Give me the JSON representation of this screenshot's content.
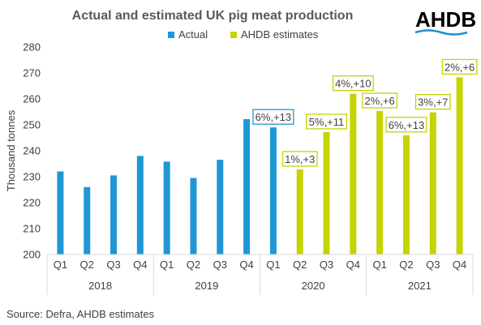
{
  "brand": {
    "logo_text": "AHDB",
    "logo_color": "#1e8fd0"
  },
  "source": "Source: Defra, AHDB estimates",
  "chart_data": {
    "type": "bar",
    "title": "Actual and estimated UK pig meat production",
    "ylabel": "Thousand tonnes",
    "xlabel": "",
    "ylim": [
      200,
      280
    ],
    "yticks": [
      200,
      210,
      220,
      230,
      240,
      250,
      260,
      270,
      280
    ],
    "grid": false,
    "legend_position": "top",
    "categories": [
      "Q1",
      "Q2",
      "Q3",
      "Q4",
      "Q1",
      "Q2",
      "Q3",
      "Q4",
      "Q1",
      "Q2",
      "Q3",
      "Q4",
      "Q1",
      "Q2",
      "Q3",
      "Q4"
    ],
    "groups": [
      {
        "label": "2018",
        "count": 4
      },
      {
        "label": "2019",
        "count": 4
      },
      {
        "label": "2020",
        "count": 4
      },
      {
        "label": "2021",
        "count": 4
      }
    ],
    "series": [
      {
        "name": "Actual",
        "color": "#1f97d5",
        "values": [
          232,
          226,
          230.5,
          238,
          235.8,
          229.5,
          236.5,
          252.2,
          249,
          null,
          null,
          null,
          null,
          null,
          null,
          null
        ]
      },
      {
        "name": "AHDB estimates",
        "color": "#c5d400",
        "values": [
          null,
          null,
          null,
          null,
          null,
          null,
          null,
          null,
          null,
          232.8,
          247.2,
          262,
          255.3,
          246,
          254.8,
          268.3
        ]
      }
    ],
    "data_labels": [
      {
        "index": 8,
        "text": "6%,+13",
        "series": "Actual"
      },
      {
        "index": 9,
        "text": "1%,+3",
        "series": "AHDB estimates"
      },
      {
        "index": 10,
        "text": "5%,+11",
        "series": "AHDB estimates"
      },
      {
        "index": 11,
        "text": "4%,+10",
        "series": "AHDB estimates"
      },
      {
        "index": 12,
        "text": "2%,+6",
        "series": "AHDB estimates"
      },
      {
        "index": 13,
        "text": "6%,+13",
        "series": "AHDB estimates"
      },
      {
        "index": 14,
        "text": "3%,+7",
        "series": "AHDB estimates"
      },
      {
        "index": 15,
        "text": "2%,+6",
        "series": "AHDB estimates"
      }
    ]
  }
}
